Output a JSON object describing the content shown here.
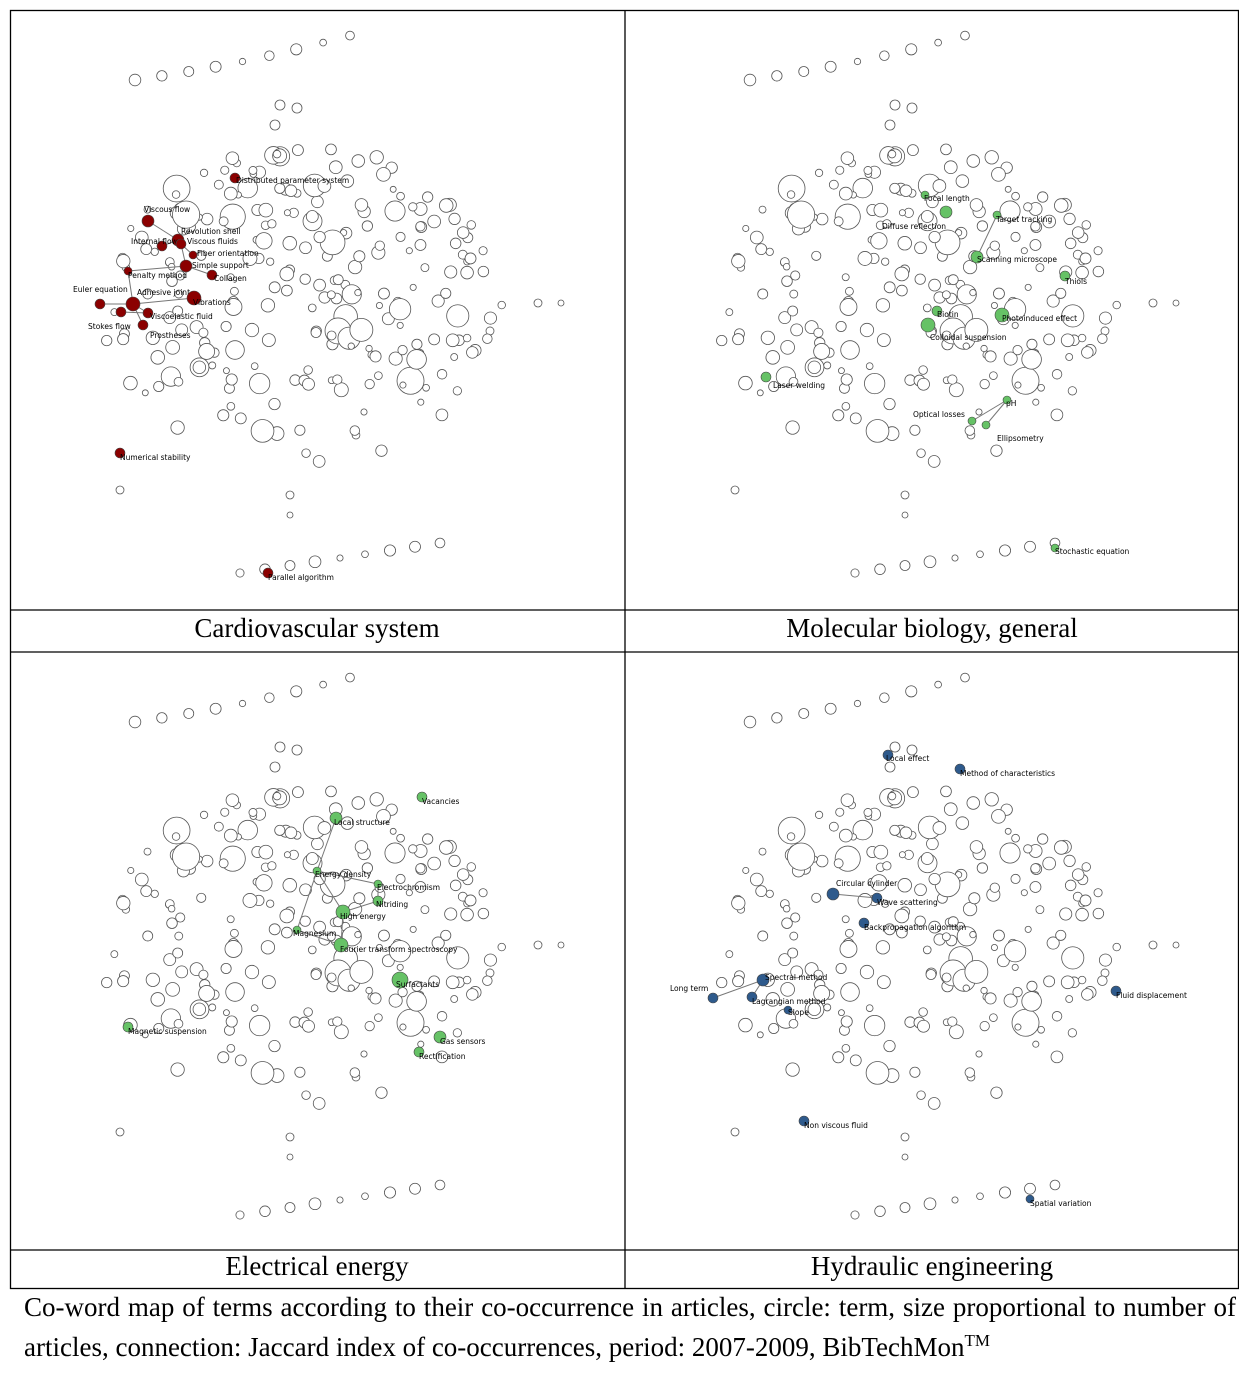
{
  "panels": [
    {
      "title": "Cardiovascular system",
      "color": "#8b0000",
      "nodes": [
        "Distributed parameter system",
        "Viscous flow",
        "Revolution shell",
        "Internal flow",
        "Viscous fluids",
        "Fiber orientation",
        "Penalty method",
        "Simple support",
        "Collagen",
        "Euler equation",
        "Adhesive joint",
        "Vibrations",
        "Viscoelastic fluid",
        "Stokes flow",
        "Prostheses",
        "Numerical stability",
        "Parallel algorithm"
      ]
    },
    {
      "title": "Molecular biology, general",
      "color": "#66c266",
      "nodes": [
        "Focal length",
        "Target tracking",
        "Diffuse reflection",
        "Scanning microscope",
        "Thiols",
        "Biotin",
        "Photoinduced effect",
        "Colloidal suspension",
        "Laser welding",
        "Optical losses",
        "pH",
        "Ellipsometry",
        "Stochastic equation"
      ]
    },
    {
      "title": "Electrical energy",
      "color": "#66c266",
      "nodes": [
        "Vacancies",
        "Local structure",
        "Energy density",
        "Electrochromism",
        "Nitriding",
        "High energy",
        "Magnesium",
        "Fourier transform spectroscopy",
        "Surfactants",
        "Magnetic suspension",
        "Gas sensors",
        "Rectification"
      ]
    },
    {
      "title": "Hydraulic engineering",
      "color": "#2e5a8c",
      "nodes": [
        "Local effect",
        "Method of characteristics",
        "Circular cylinder",
        "Wave scattering",
        "Backpropagation algorithm",
        "Spectral method",
        "Long term",
        "Lagrangian method",
        "Slope",
        "Fluid displacement",
        "Non viscous fluid",
        "Spatial variation"
      ]
    }
  ],
  "caption": {
    "text": "Co-word map of terms according to their co-occurrence in articles, circle: term, size proportional to number of articles, connection: Jaccard index of co-occurrences, period: 2007-2009, BibTechMon",
    "trademark": "TM"
  }
}
